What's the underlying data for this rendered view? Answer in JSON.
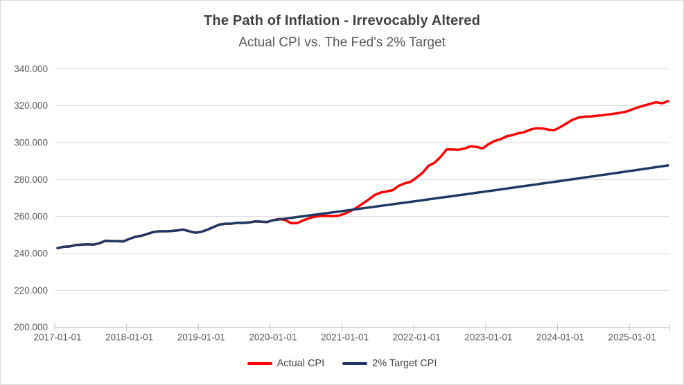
{
  "chart": {
    "title": "The Path of Inflation - Irrevocably Altered",
    "subtitle": "Actual CPI vs. The Fed's 2% Target"
  },
  "colors": {
    "background": "#FFFFFF",
    "frame_border": "#D9D9D9",
    "gridline": "#D9D9D9",
    "axis_line": "#BFBFBF",
    "title_text": "#404040",
    "subtitle_text": "#595959",
    "tick_text": "#595959",
    "actual_line": "#FE0000",
    "target_line": "#1F3864"
  },
  "chart_data": {
    "type": "line",
    "title": "The Path of Inflation - Irrevocably Altered",
    "subtitle": "Actual CPI vs. The Fed's 2% Target",
    "x_unit": "month",
    "x_start": "2017-01",
    "x_end": "2025-07",
    "x_tick_labels": [
      "2017-01-01",
      "2018-01-01",
      "2019-01-01",
      "2020-01-01",
      "2021-01-01",
      "2022-01-01",
      "2023-01-01",
      "2024-01-01",
      "2025-01-01"
    ],
    "y_ticks": [
      200,
      220,
      240,
      260,
      280,
      300,
      320,
      340
    ],
    "y_tick_labels": [
      "200.000",
      "220.000",
      "240.000",
      "260.000",
      "280.000",
      "300.000",
      "320.000",
      "340.000"
    ],
    "ylim": [
      200,
      340
    ],
    "grid": "horizontal",
    "legend_position": "bottom",
    "series": [
      {
        "name": "Actual CPI",
        "color": "#FE0000",
        "values": [
          242.839,
          243.603,
          243.801,
          244.524,
          244.733,
          244.955,
          244.786,
          245.519,
          246.819,
          246.663,
          246.669,
          246.524,
          247.867,
          248.991,
          249.554,
          250.546,
          251.588,
          251.989,
          252.006,
          252.146,
          252.439,
          252.885,
          252.038,
          251.233,
          251.712,
          252.776,
          254.202,
          255.548,
          256.092,
          256.143,
          256.571,
          256.558,
          256.759,
          257.346,
          257.208,
          256.974,
          257.971,
          258.678,
          258.115,
          256.389,
          256.394,
          257.797,
          259.101,
          259.918,
          260.28,
          260.388,
          260.229,
          260.474,
          261.582,
          263.014,
          264.877,
          267.054,
          269.195,
          271.696,
          273.003,
          273.567,
          274.31,
          276.589,
          277.948,
          278.802,
          281.148,
          283.716,
          287.504,
          289.109,
          292.296,
          296.311,
          296.276,
          296.171,
          296.808,
          298.012,
          297.711,
          296.797,
          299.17,
          300.84,
          301.836,
          303.363,
          304.127,
          305.109,
          305.691,
          307.026,
          307.789,
          307.671,
          307.051,
          306.746,
          308.417,
          310.326,
          312.332,
          313.548,
          314.069,
          314.175,
          314.54,
          314.796,
          315.301,
          315.664,
          316.2,
          316.8,
          318.0,
          319.1,
          320.1,
          321.0,
          321.9,
          321.3,
          322.5
        ]
      },
      {
        "name": "2% Target CPI",
        "color": "#1F3864",
        "values": [
          242.839,
          243.603,
          243.801,
          244.524,
          244.733,
          244.955,
          244.786,
          245.519,
          246.819,
          246.663,
          246.669,
          246.524,
          247.867,
          248.991,
          249.554,
          250.546,
          251.588,
          251.989,
          252.006,
          252.146,
          252.439,
          252.885,
          252.038,
          251.233,
          251.712,
          252.776,
          254.202,
          255.548,
          256.092,
          256.143,
          256.571,
          256.558,
          256.759,
          257.346,
          257.208,
          256.974,
          257.971,
          258.397,
          258.824,
          259.251,
          259.679,
          260.108,
          260.538,
          260.968,
          261.399,
          261.831,
          262.263,
          262.696,
          263.13,
          263.565,
          264.0,
          264.436,
          264.873,
          265.31,
          265.748,
          266.187,
          266.627,
          267.067,
          267.508,
          267.95,
          268.393,
          268.836,
          269.28,
          269.725,
          270.17,
          270.616,
          271.063,
          271.511,
          271.96,
          272.409,
          272.859,
          273.309,
          273.761,
          274.213,
          274.666,
          275.12,
          275.574,
          276.029,
          276.485,
          276.942,
          277.399,
          277.857,
          278.316,
          278.776,
          279.237,
          279.698,
          280.16,
          280.623,
          281.086,
          281.55,
          282.015,
          282.481,
          282.948,
          283.415,
          283.883,
          284.352,
          284.822,
          285.292,
          285.763,
          286.235,
          286.708,
          287.182,
          287.656
        ]
      }
    ]
  }
}
